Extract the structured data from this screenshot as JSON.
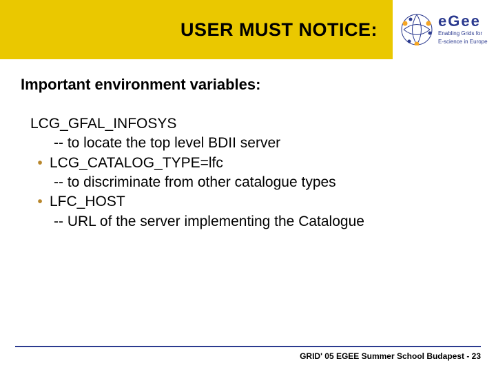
{
  "colors": {
    "title_bg": "#eac800",
    "title_text": "#000000",
    "logo_blue": "#2b3a8f",
    "logo_orange": "#f5a623",
    "body_text": "#000000",
    "bullet": "#b8862b",
    "rule": "#2b3a8f",
    "footer_text": "#000000"
  },
  "sizes": {
    "title_fontsize": 27,
    "subtitle_fontsize": 22,
    "body_fontsize": 21,
    "logo_big_fontsize": 22,
    "logo_small_fontsize": 8,
    "footer_fontsize": 12,
    "title_block_width": 570
  },
  "header": {
    "title": "USER MUST NOTICE:",
    "logo_big": "eGee",
    "logo_small_line1": "Enabling Grids for",
    "logo_small_line2": "E-science in Europe"
  },
  "subtitle": "Important environment variables:",
  "body": {
    "line1": "LCG_GFAL_INFOSYS",
    "line2": "-- to locate the top level BDII server",
    "bullet2": "LCG_CATALOG_TYPE=lfc",
    "bullet2_sub": "-- to discriminate from other catalogue types",
    "bullet3": " LFC_HOST",
    "bullet3_sub": "-- URL of the server implementing the Catalogue"
  },
  "footer": "GRID' 05 EGEE Summer School Budapest - 23"
}
